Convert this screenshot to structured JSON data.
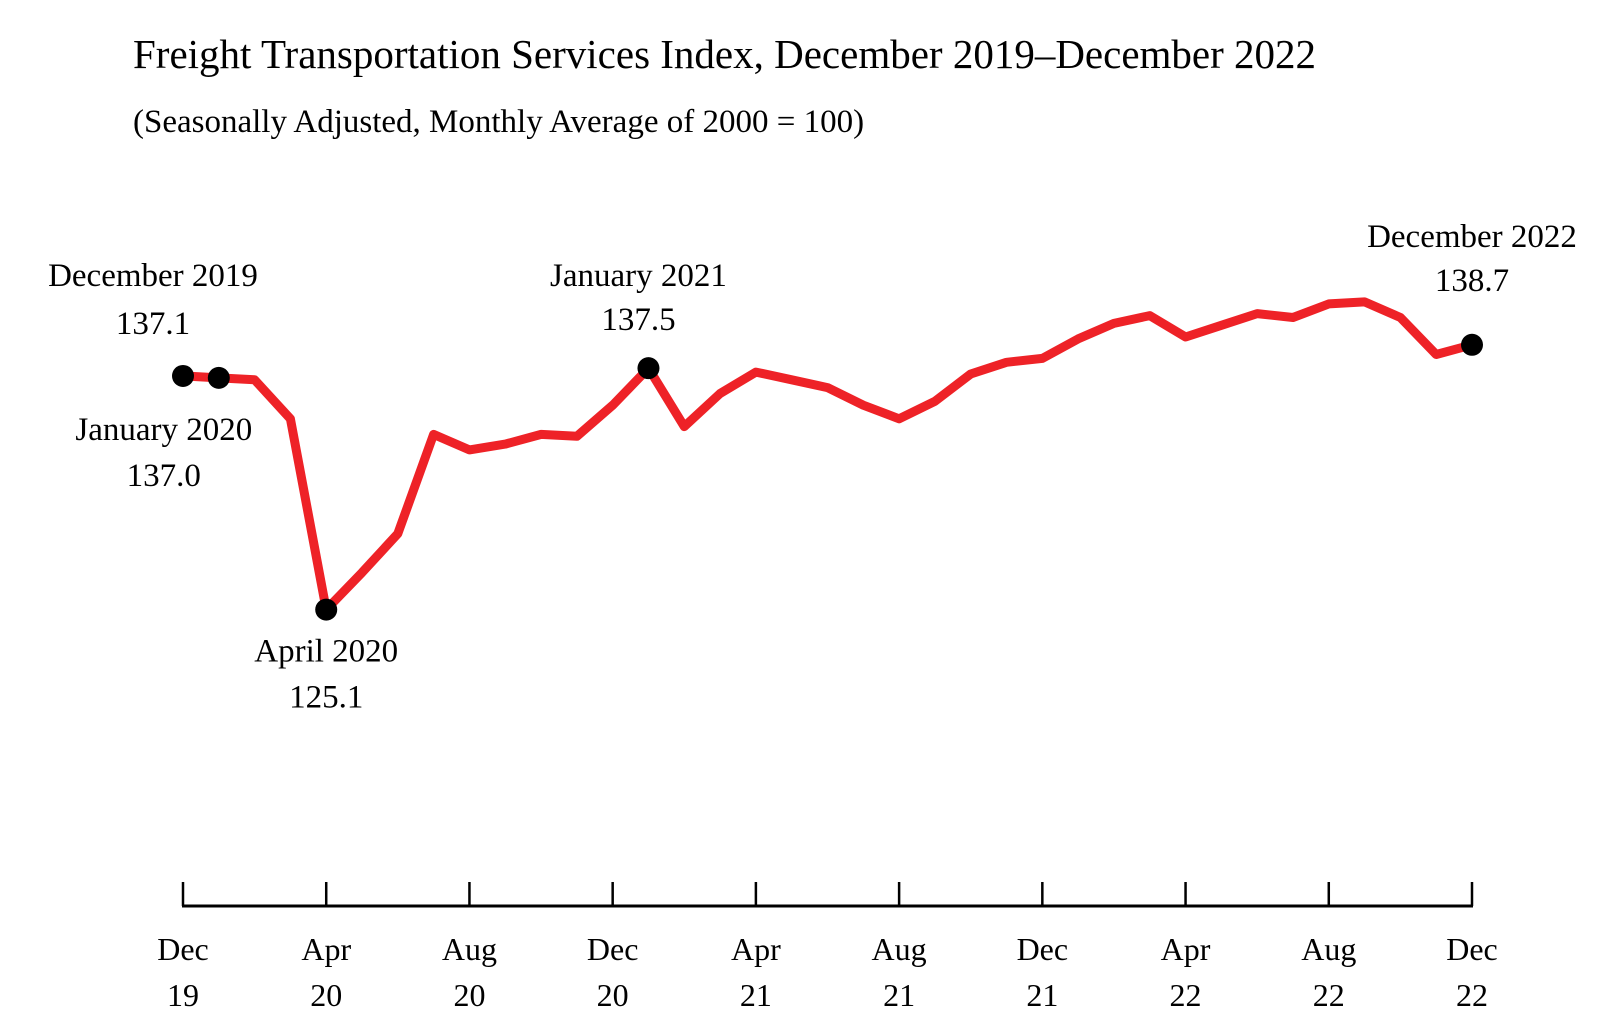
{
  "chart_data": {
    "type": "line",
    "title": "Freight Transportation Services Index, December 2019–December 2022",
    "subtitle": "(Seasonally Adjusted, Monthly Average of 2000 = 100)",
    "xlabel": "",
    "ylabel": "",
    "ylim": [
      122,
      141
    ],
    "grid": false,
    "legend": "none",
    "line_color": "#ee2227",
    "marker_color": "#000000",
    "series": [
      {
        "name": "Freight Transportation Services Index",
        "x": [
          "Dec 2019",
          "Jan 2020",
          "Feb 2020",
          "Mar 2020",
          "Apr 2020",
          "May 2020",
          "Jun 2020",
          "Jul 2020",
          "Aug 2020",
          "Sep 2020",
          "Oct 2020",
          "Nov 2020",
          "Dec 2020",
          "Jan 2021",
          "Feb 2021",
          "Mar 2021",
          "Apr 2021",
          "May 2021",
          "Jun 2021",
          "Jul 2021",
          "Aug 2021",
          "Sep 2021",
          "Oct 2021",
          "Nov 2021",
          "Dec 2021",
          "Jan 2022",
          "Feb 2022",
          "Mar 2022",
          "Apr 2022",
          "May 2022",
          "Jun 2022",
          "Jul 2022",
          "Aug 2022",
          "Sep 2022",
          "Oct 2022",
          "Nov 2022",
          "Dec 2022"
        ],
        "values": [
          137.1,
          137.0,
          136.9,
          134.9,
          125.1,
          127.0,
          129.0,
          134.1,
          133.3,
          133.6,
          134.1,
          134.0,
          135.6,
          137.5,
          134.5,
          136.2,
          137.3,
          136.9,
          136.5,
          135.6,
          134.9,
          135.8,
          137.2,
          137.8,
          138.0,
          139.0,
          139.8,
          140.2,
          139.1,
          139.7,
          140.3,
          140.1,
          140.8,
          140.9,
          140.1,
          138.2,
          138.7
        ]
      }
    ],
    "x_ticks": [
      {
        "month": "Dec",
        "year": "19",
        "index": 0
      },
      {
        "month": "Apr",
        "year": "20",
        "index": 4
      },
      {
        "month": "Aug",
        "year": "20",
        "index": 8
      },
      {
        "month": "Dec",
        "year": "20",
        "index": 12
      },
      {
        "month": "Apr",
        "year": "21",
        "index": 16
      },
      {
        "month": "Aug",
        "year": "21",
        "index": 20
      },
      {
        "month": "Dec",
        "year": "21",
        "index": 24
      },
      {
        "month": "Apr",
        "year": "22",
        "index": 28
      },
      {
        "month": "Aug",
        "year": "22",
        "index": 32
      },
      {
        "month": "Dec",
        "year": "22",
        "index": 36
      }
    ],
    "annotations": [
      {
        "index": 0,
        "label": "December 2019",
        "value": "137.1",
        "placement": "above"
      },
      {
        "index": 1,
        "label": "January 2020",
        "value": "137.0",
        "placement": "below"
      },
      {
        "index": 4,
        "label": "April 2020",
        "value": "125.1",
        "placement": "below"
      },
      {
        "index": 13,
        "label": "January 2021",
        "value": "137.5",
        "placement": "above"
      },
      {
        "index": 36,
        "label": "December 2022",
        "value": "138.7",
        "placement": "above"
      }
    ]
  }
}
